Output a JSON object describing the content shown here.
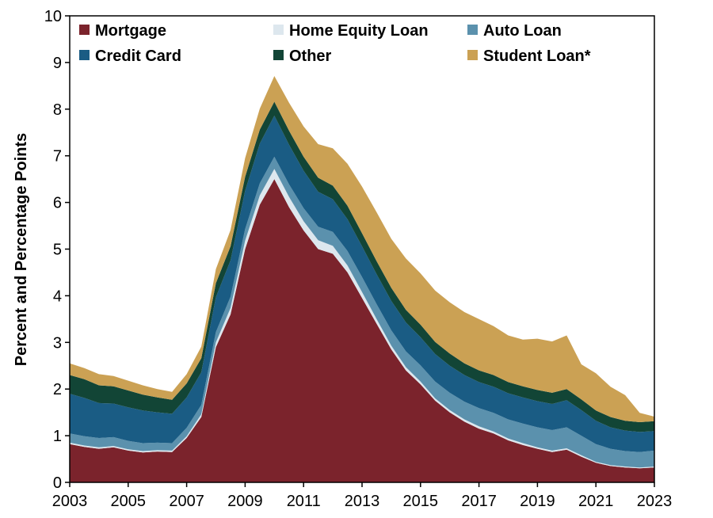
{
  "chart_data": {
    "type": "area",
    "stacked": true,
    "ylabel": "Percent and Percentage Points",
    "xlabel": "",
    "ylim": [
      0,
      10
    ],
    "xlim": [
      2003,
      2023
    ],
    "y_ticks": [
      "0",
      "1",
      "2",
      "3",
      "4",
      "5",
      "6",
      "7",
      "8",
      "9",
      "10"
    ],
    "x_ticks": [
      "2003",
      "2005",
      "2007",
      "2009",
      "2011",
      "2013",
      "2015",
      "2017",
      "2019",
      "2021",
      "2023"
    ],
    "grid": false,
    "legend_position": "top",
    "x": [
      2003.0,
      2003.5,
      2004.0,
      2004.5,
      2005.0,
      2005.5,
      2006.0,
      2006.5,
      2007.0,
      2007.5,
      2008.0,
      2008.5,
      2009.0,
      2009.5,
      2010.0,
      2010.5,
      2011.0,
      2011.5,
      2012.0,
      2012.5,
      2013.0,
      2013.5,
      2014.0,
      2014.5,
      2015.0,
      2015.5,
      2016.0,
      2016.5,
      2017.0,
      2017.5,
      2018.0,
      2018.5,
      2019.0,
      2019.5,
      2020.0,
      2020.5,
      2021.0,
      2021.5,
      2022.0,
      2022.5,
      2023.0
    ],
    "series": [
      {
        "name": "Mortgage",
        "color": "#7b232c",
        "values": [
          0.82,
          0.76,
          0.72,
          0.75,
          0.68,
          0.64,
          0.66,
          0.65,
          0.95,
          1.4,
          2.9,
          3.6,
          5.0,
          5.95,
          6.5,
          5.9,
          5.4,
          5.0,
          4.9,
          4.5,
          3.95,
          3.4,
          2.85,
          2.4,
          2.1,
          1.75,
          1.5,
          1.3,
          1.15,
          1.05,
          0.9,
          0.8,
          0.72,
          0.65,
          0.7,
          0.55,
          0.42,
          0.35,
          0.32,
          0.3,
          0.32
        ]
      },
      {
        "name": "Home Equity Loan",
        "color": "#dde7ee",
        "values": [
          0.03,
          0.03,
          0.03,
          0.03,
          0.03,
          0.03,
          0.03,
          0.03,
          0.04,
          0.06,
          0.1,
          0.14,
          0.18,
          0.2,
          0.22,
          0.22,
          0.2,
          0.19,
          0.17,
          0.15,
          0.13,
          0.1,
          0.08,
          0.07,
          0.06,
          0.05,
          0.05,
          0.05,
          0.05,
          0.04,
          0.04,
          0.04,
          0.03,
          0.03,
          0.03,
          0.03,
          0.02,
          0.02,
          0.02,
          0.02,
          0.02
        ]
      },
      {
        "name": "Auto Loan",
        "color": "#5b91ad",
        "values": [
          0.2,
          0.2,
          0.2,
          0.19,
          0.18,
          0.17,
          0.16,
          0.16,
          0.18,
          0.2,
          0.22,
          0.24,
          0.25,
          0.26,
          0.26,
          0.27,
          0.28,
          0.29,
          0.3,
          0.31,
          0.32,
          0.32,
          0.33,
          0.34,
          0.35,
          0.36,
          0.37,
          0.38,
          0.39,
          0.4,
          0.41,
          0.42,
          0.43,
          0.44,
          0.45,
          0.42,
          0.38,
          0.35,
          0.33,
          0.33,
          0.34
        ]
      },
      {
        "name": "Credit Card",
        "color": "#1a5c84",
        "values": [
          0.85,
          0.82,
          0.75,
          0.72,
          0.72,
          0.7,
          0.65,
          0.63,
          0.65,
          0.7,
          0.75,
          0.78,
          0.82,
          0.85,
          0.88,
          0.85,
          0.8,
          0.75,
          0.7,
          0.68,
          0.66,
          0.64,
          0.63,
          0.62,
          0.6,
          0.59,
          0.58,
          0.57,
          0.56,
          0.56,
          0.56,
          0.56,
          0.56,
          0.56,
          0.58,
          0.55,
          0.5,
          0.46,
          0.44,
          0.43,
          0.42
        ]
      },
      {
        "name": "Other",
        "color": "#124536",
        "values": [
          0.4,
          0.4,
          0.38,
          0.37,
          0.36,
          0.34,
          0.32,
          0.3,
          0.3,
          0.3,
          0.3,
          0.3,
          0.3,
          0.3,
          0.3,
          0.3,
          0.3,
          0.3,
          0.29,
          0.29,
          0.28,
          0.28,
          0.28,
          0.27,
          0.27,
          0.26,
          0.26,
          0.25,
          0.25,
          0.25,
          0.24,
          0.24,
          0.24,
          0.24,
          0.24,
          0.23,
          0.22,
          0.22,
          0.21,
          0.21,
          0.21
        ]
      },
      {
        "name": "Student Loan*",
        "color": "#cba154",
        "values": [
          0.25,
          0.24,
          0.24,
          0.22,
          0.21,
          0.2,
          0.18,
          0.17,
          0.2,
          0.25,
          0.3,
          0.35,
          0.4,
          0.45,
          0.55,
          0.6,
          0.65,
          0.72,
          0.8,
          0.9,
          1.0,
          1.05,
          1.05,
          1.1,
          1.1,
          1.1,
          1.1,
          1.1,
          1.1,
          1.05,
          1.0,
          1.0,
          1.1,
          1.1,
          1.15,
          0.75,
          0.8,
          0.65,
          0.55,
          0.2,
          0.1
        ]
      }
    ]
  }
}
